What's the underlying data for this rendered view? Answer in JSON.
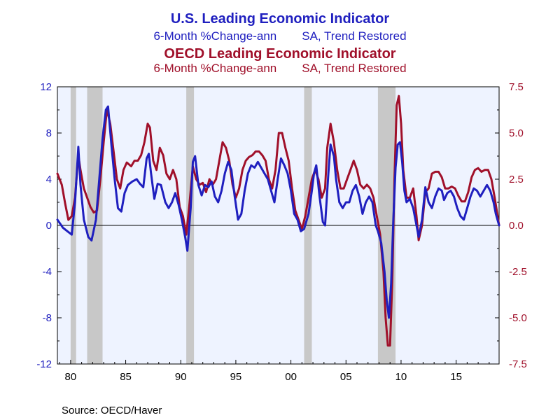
{
  "titles": {
    "us_title": "U.S. Leading Economic Indicator",
    "us_sub_a": "6-Month %Change-ann",
    "us_sub_b": "SA, Trend Restored",
    "oecd_title": "OECD Leading Economic Indicator",
    "oecd_sub_a": "6-Month %Change-ann",
    "oecd_sub_b": "SA, Trend Restored"
  },
  "source": "Source:  OECD/Haver",
  "colors": {
    "us": "#1f1fbf",
    "oecd": "#a0102a",
    "plot_bg": "#eef3ff",
    "recession": "#c8c8c8"
  },
  "chart_data": {
    "type": "line",
    "x_range": [
      1978.8,
      2018.9
    ],
    "x_ticks": [
      {
        "value": 1980,
        "label": "80"
      },
      {
        "value": 1985,
        "label": "85"
      },
      {
        "value": 1990,
        "label": "90"
      },
      {
        "value": 1995,
        "label": "95"
      },
      {
        "value": 2000,
        "label": "00"
      },
      {
        "value": 2005,
        "label": "05"
      },
      {
        "value": 2010,
        "label": "10"
      },
      {
        "value": 2015,
        "label": "15"
      }
    ],
    "y_left": {
      "range": [
        -12,
        12
      ],
      "ticks": [
        "12",
        "8",
        "4",
        "0",
        "-4",
        "-8",
        "-12"
      ]
    },
    "y_right": {
      "range": [
        -7.5,
        7.5
      ],
      "ticks": [
        "7.5",
        "5.0",
        "2.5",
        "0.0",
        "-2.5",
        "-5.0",
        "-7.5"
      ]
    },
    "recessions": [
      [
        1980.0,
        1980.5
      ],
      [
        1981.5,
        1982.9
      ],
      [
        1990.5,
        1991.2
      ],
      [
        2001.2,
        2001.9
      ],
      [
        2007.9,
        2009.5
      ]
    ],
    "series": [
      {
        "name": "U.S. Leading Economic Indicator",
        "axis": "left",
        "points": [
          [
            1978.8,
            0.5
          ],
          [
            1979.3,
            -0.2
          ],
          [
            1979.7,
            -0.5
          ],
          [
            1980.1,
            -0.8
          ],
          [
            1980.4,
            2.0
          ],
          [
            1980.7,
            6.8
          ],
          [
            1980.9,
            3.5
          ],
          [
            1981.2,
            0.5
          ],
          [
            1981.6,
            -1.0
          ],
          [
            1981.9,
            -1.3
          ],
          [
            1982.3,
            0.5
          ],
          [
            1982.6,
            4.0
          ],
          [
            1982.9,
            7.5
          ],
          [
            1983.2,
            10.0
          ],
          [
            1983.4,
            10.3
          ],
          [
            1983.7,
            7.0
          ],
          [
            1984.0,
            4.0
          ],
          [
            1984.3,
            1.5
          ],
          [
            1984.6,
            1.2
          ],
          [
            1984.9,
            2.8
          ],
          [
            1985.2,
            3.5
          ],
          [
            1985.6,
            3.8
          ],
          [
            1986.0,
            4.0
          ],
          [
            1986.3,
            3.6
          ],
          [
            1986.6,
            3.3
          ],
          [
            1986.9,
            5.8
          ],
          [
            1987.1,
            6.2
          ],
          [
            1987.3,
            4.5
          ],
          [
            1987.6,
            2.3
          ],
          [
            1987.9,
            3.6
          ],
          [
            1988.2,
            3.5
          ],
          [
            1988.6,
            2.0
          ],
          [
            1988.9,
            1.5
          ],
          [
            1989.2,
            2.0
          ],
          [
            1989.5,
            2.8
          ],
          [
            1989.8,
            1.8
          ],
          [
            1990.1,
            0.5
          ],
          [
            1990.4,
            -1.0
          ],
          [
            1990.6,
            -2.2
          ],
          [
            1990.9,
            1.5
          ],
          [
            1991.1,
            5.5
          ],
          [
            1991.3,
            6.0
          ],
          [
            1991.6,
            3.5
          ],
          [
            1991.9,
            2.6
          ],
          [
            1992.2,
            3.5
          ],
          [
            1992.5,
            3.3
          ],
          [
            1992.8,
            3.8
          ],
          [
            1993.1,
            2.5
          ],
          [
            1993.4,
            2.0
          ],
          [
            1993.7,
            3.0
          ],
          [
            1994.0,
            4.5
          ],
          [
            1994.3,
            5.5
          ],
          [
            1994.6,
            4.8
          ],
          [
            1994.9,
            2.5
          ],
          [
            1995.2,
            0.5
          ],
          [
            1995.5,
            1.0
          ],
          [
            1995.8,
            3.0
          ],
          [
            1996.1,
            4.5
          ],
          [
            1996.4,
            5.2
          ],
          [
            1996.7,
            5.0
          ],
          [
            1997.0,
            5.5
          ],
          [
            1997.3,
            5.0
          ],
          [
            1997.6,
            4.5
          ],
          [
            1997.9,
            4.0
          ],
          [
            1998.2,
            3.0
          ],
          [
            1998.5,
            2.0
          ],
          [
            1998.8,
            4.0
          ],
          [
            1999.1,
            5.8
          ],
          [
            1999.4,
            5.2
          ],
          [
            1999.7,
            4.5
          ],
          [
            2000.0,
            3.0
          ],
          [
            2000.3,
            1.0
          ],
          [
            2000.6,
            0.5
          ],
          [
            2000.9,
            -0.5
          ],
          [
            2001.2,
            -0.3
          ],
          [
            2001.6,
            1.0
          ],
          [
            2001.9,
            3.0
          ],
          [
            2002.1,
            4.5
          ],
          [
            2002.3,
            5.2
          ],
          [
            2002.6,
            2.5
          ],
          [
            2002.9,
            0.3
          ],
          [
            2003.1,
            0.0
          ],
          [
            2003.4,
            4.5
          ],
          [
            2003.6,
            7.0
          ],
          [
            2003.9,
            6.0
          ],
          [
            2004.1,
            4.0
          ],
          [
            2004.4,
            2.0
          ],
          [
            2004.7,
            1.5
          ],
          [
            2005.0,
            2.0
          ],
          [
            2005.3,
            2.0
          ],
          [
            2005.6,
            3.0
          ],
          [
            2005.9,
            3.5
          ],
          [
            2006.2,
            2.5
          ],
          [
            2006.5,
            1.0
          ],
          [
            2006.8,
            2.0
          ],
          [
            2007.1,
            2.5
          ],
          [
            2007.4,
            2.0
          ],
          [
            2007.7,
            0.0
          ],
          [
            2007.9,
            -0.5
          ],
          [
            2008.2,
            -1.5
          ],
          [
            2008.5,
            -4.0
          ],
          [
            2008.7,
            -6.5
          ],
          [
            2008.9,
            -8.0
          ],
          [
            2009.1,
            -5.0
          ],
          [
            2009.3,
            0.5
          ],
          [
            2009.5,
            5.0
          ],
          [
            2009.7,
            7.0
          ],
          [
            2009.9,
            7.2
          ],
          [
            2010.1,
            5.5
          ],
          [
            2010.3,
            3.0
          ],
          [
            2010.5,
            2.0
          ],
          [
            2010.8,
            2.3
          ],
          [
            2011.1,
            1.5
          ],
          [
            2011.4,
            0.0
          ],
          [
            2011.6,
            -1.0
          ],
          [
            2011.9,
            0.5
          ],
          [
            2012.2,
            3.3
          ],
          [
            2012.5,
            2.0
          ],
          [
            2012.8,
            1.5
          ],
          [
            2013.1,
            2.5
          ],
          [
            2013.4,
            3.2
          ],
          [
            2013.7,
            3.0
          ],
          [
            2013.9,
            2.2
          ],
          [
            2014.2,
            2.8
          ],
          [
            2014.5,
            3.0
          ],
          [
            2014.8,
            2.5
          ],
          [
            2015.1,
            1.5
          ],
          [
            2015.4,
            0.8
          ],
          [
            2015.7,
            0.5
          ],
          [
            2016.0,
            1.5
          ],
          [
            2016.3,
            2.5
          ],
          [
            2016.6,
            3.2
          ],
          [
            2016.9,
            3.0
          ],
          [
            2017.2,
            2.5
          ],
          [
            2017.5,
            3.0
          ],
          [
            2017.8,
            3.5
          ],
          [
            2018.1,
            3.0
          ],
          [
            2018.4,
            2.0
          ],
          [
            2018.6,
            1.0
          ],
          [
            2018.9,
            0.0
          ]
        ]
      },
      {
        "name": "OECD Leading Economic Indicator",
        "axis": "right",
        "points": [
          [
            1978.8,
            2.8
          ],
          [
            1979.2,
            2.2
          ],
          [
            1979.5,
            1.2
          ],
          [
            1979.8,
            0.3
          ],
          [
            1980.1,
            0.5
          ],
          [
            1980.4,
            1.5
          ],
          [
            1980.7,
            3.8
          ],
          [
            1980.9,
            3.0
          ],
          [
            1981.2,
            2.0
          ],
          [
            1981.5,
            1.5
          ],
          [
            1981.8,
            1.0
          ],
          [
            1982.1,
            0.7
          ],
          [
            1982.4,
            0.8
          ],
          [
            1982.7,
            2.5
          ],
          [
            1983.0,
            4.5
          ],
          [
            1983.3,
            6.3
          ],
          [
            1983.6,
            5.5
          ],
          [
            1983.9,
            4.0
          ],
          [
            1984.2,
            2.5
          ],
          [
            1984.5,
            2.0
          ],
          [
            1984.8,
            3.0
          ],
          [
            1985.1,
            3.4
          ],
          [
            1985.5,
            3.2
          ],
          [
            1985.8,
            3.5
          ],
          [
            1986.1,
            3.5
          ],
          [
            1986.4,
            3.8
          ],
          [
            1986.7,
            4.5
          ],
          [
            1987.0,
            5.5
          ],
          [
            1987.2,
            5.3
          ],
          [
            1987.5,
            3.5
          ],
          [
            1987.8,
            3.0
          ],
          [
            1988.1,
            4.2
          ],
          [
            1988.4,
            3.8
          ],
          [
            1988.7,
            2.8
          ],
          [
            1989.0,
            2.5
          ],
          [
            1989.3,
            3.0
          ],
          [
            1989.6,
            2.5
          ],
          [
            1989.9,
            1.0
          ],
          [
            1990.2,
            0.5
          ],
          [
            1990.5,
            -0.5
          ],
          [
            1990.8,
            1.2
          ],
          [
            1991.1,
            3.2
          ],
          [
            1991.4,
            2.5
          ],
          [
            1991.7,
            2.2
          ],
          [
            1992.0,
            2.3
          ],
          [
            1992.3,
            1.8
          ],
          [
            1992.6,
            2.5
          ],
          [
            1992.9,
            2.2
          ],
          [
            1993.2,
            2.5
          ],
          [
            1993.5,
            3.5
          ],
          [
            1993.8,
            4.5
          ],
          [
            1994.1,
            4.2
          ],
          [
            1994.4,
            3.5
          ],
          [
            1994.7,
            2.2
          ],
          [
            1995.0,
            1.5
          ],
          [
            1995.3,
            2.0
          ],
          [
            1995.6,
            3.0
          ],
          [
            1995.9,
            3.5
          ],
          [
            1996.2,
            3.7
          ],
          [
            1996.5,
            3.8
          ],
          [
            1996.8,
            4.0
          ],
          [
            1997.1,
            4.0
          ],
          [
            1997.4,
            3.8
          ],
          [
            1997.7,
            3.5
          ],
          [
            1998.0,
            2.5
          ],
          [
            1998.3,
            2.0
          ],
          [
            1998.6,
            3.0
          ],
          [
            1998.9,
            5.0
          ],
          [
            1999.2,
            5.0
          ],
          [
            1999.5,
            4.2
          ],
          [
            1999.8,
            3.5
          ],
          [
            2000.1,
            2.0
          ],
          [
            2000.4,
            0.8
          ],
          [
            2000.7,
            0.3
          ],
          [
            2001.0,
            -0.2
          ],
          [
            2001.3,
            0.5
          ],
          [
            2001.6,
            1.5
          ],
          [
            2001.9,
            2.5
          ],
          [
            2002.2,
            3.0
          ],
          [
            2002.5,
            2.5
          ],
          [
            2002.8,
            1.5
          ],
          [
            2003.1,
            2.0
          ],
          [
            2003.3,
            4.2
          ],
          [
            2003.6,
            5.5
          ],
          [
            2003.9,
            4.5
          ],
          [
            2004.2,
            3.0
          ],
          [
            2004.5,
            2.0
          ],
          [
            2004.8,
            2.0
          ],
          [
            2005.1,
            2.5
          ],
          [
            2005.4,
            3.0
          ],
          [
            2005.7,
            3.5
          ],
          [
            2006.0,
            3.0
          ],
          [
            2006.3,
            2.2
          ],
          [
            2006.6,
            2.0
          ],
          [
            2006.9,
            2.2
          ],
          [
            2007.2,
            2.0
          ],
          [
            2007.5,
            1.5
          ],
          [
            2007.8,
            0.5
          ],
          [
            2008.1,
            -0.5
          ],
          [
            2008.4,
            -2.5
          ],
          [
            2008.6,
            -5.0
          ],
          [
            2008.8,
            -6.5
          ],
          [
            2009.0,
            -6.5
          ],
          [
            2009.2,
            -3.0
          ],
          [
            2009.4,
            2.5
          ],
          [
            2009.6,
            6.5
          ],
          [
            2009.8,
            7.0
          ],
          [
            2010.0,
            5.5
          ],
          [
            2010.2,
            3.0
          ],
          [
            2010.5,
            1.5
          ],
          [
            2010.8,
            1.5
          ],
          [
            2011.1,
            2.0
          ],
          [
            2011.4,
            0.5
          ],
          [
            2011.6,
            -0.8
          ],
          [
            2011.9,
            0.0
          ],
          [
            2012.2,
            1.8
          ],
          [
            2012.5,
            2.0
          ],
          [
            2012.8,
            2.8
          ],
          [
            2013.1,
            2.9
          ],
          [
            2013.4,
            2.9
          ],
          [
            2013.7,
            2.6
          ],
          [
            2014.0,
            2.0
          ],
          [
            2014.3,
            2.0
          ],
          [
            2014.6,
            2.1
          ],
          [
            2014.9,
            2.0
          ],
          [
            2015.2,
            1.6
          ],
          [
            2015.5,
            1.3
          ],
          [
            2015.8,
            1.3
          ],
          [
            2016.1,
            1.8
          ],
          [
            2016.4,
            2.6
          ],
          [
            2016.7,
            3.0
          ],
          [
            2017.0,
            3.1
          ],
          [
            2017.3,
            2.9
          ],
          [
            2017.6,
            3.0
          ],
          [
            2017.9,
            3.0
          ],
          [
            2018.2,
            2.5
          ],
          [
            2018.5,
            1.5
          ],
          [
            2018.9,
            0.0
          ]
        ]
      }
    ]
  }
}
